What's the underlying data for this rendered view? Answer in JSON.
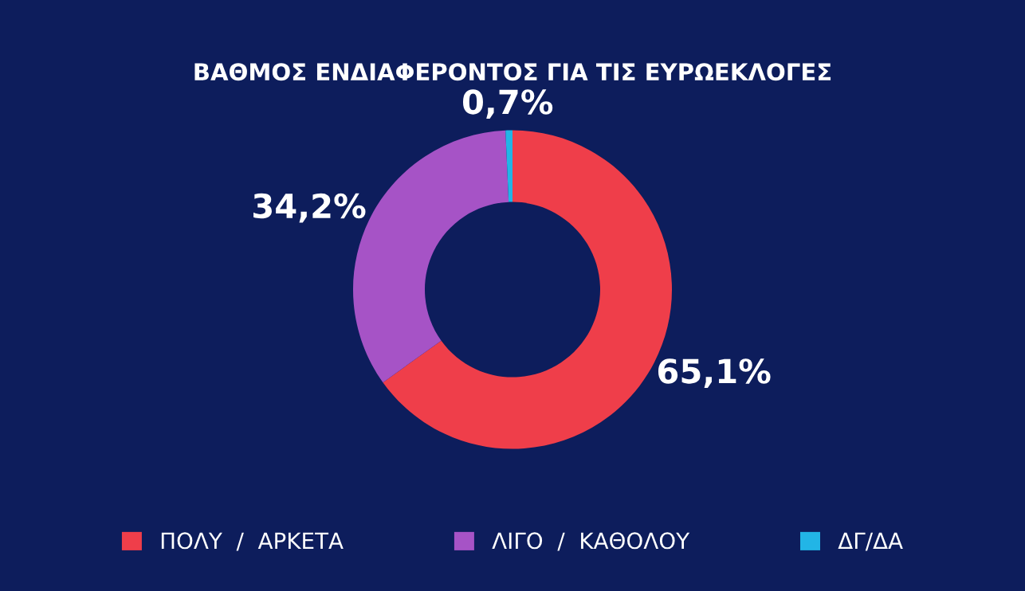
{
  "chart_data": {
    "type": "donut",
    "title": "ΒΑΘΜΟΣ ΕΝΔΙΑΦΕΡΟΝΤΟΣ ΓΙΑ ΤΙΣ ΕΥΡΩΕΚΛΟΓΕΣ",
    "categories": [
      "ΠΟΛΥ  /  ΑΡΚΕΤΑ",
      "ΛΙΓΟ  /  ΚΑΘΟΛΟΥ",
      "ΔΓ/ΔΑ"
    ],
    "values": [
      65.1,
      34.2,
      0.7
    ],
    "value_labels": [
      "65,1%",
      "34,2%",
      "0,7%"
    ],
    "colors": [
      "#ef3e4a",
      "#a653c6",
      "#22b5e6"
    ],
    "legend": "bottom"
  }
}
